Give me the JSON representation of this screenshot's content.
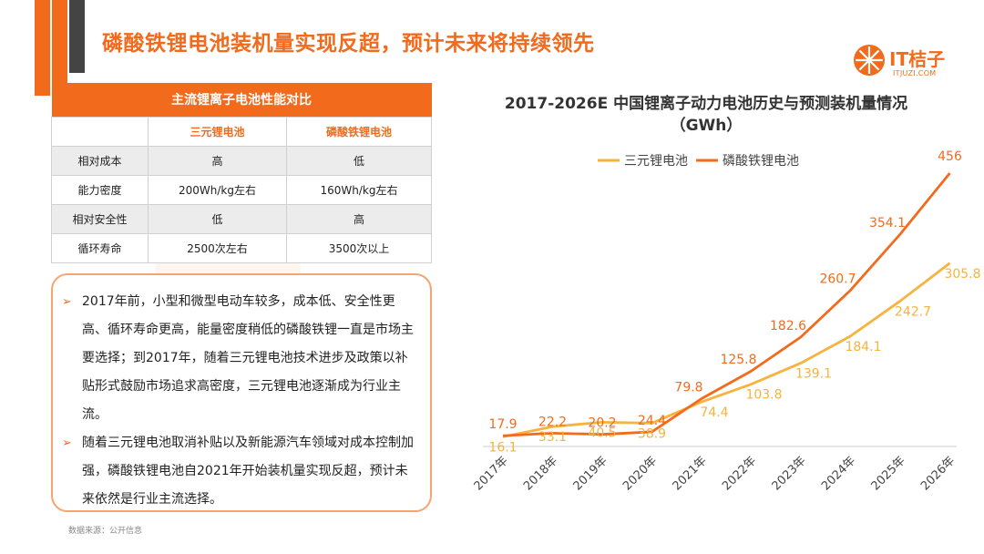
{
  "header": {
    "title": "磷酸铁锂电池装机量实现反超，预计未来将持续领先"
  },
  "logo": {
    "text": "IT桔子",
    "subtext": "ITJUZI.COM"
  },
  "table": {
    "title": "主流锂离子电池性能对比",
    "columns": [
      "",
      "三元锂电池",
      "磷酸铁锂电池"
    ],
    "rows": [
      [
        "相对成本",
        "高",
        "低"
      ],
      [
        "能力密度",
        "200Wh/kg左右",
        "160Wh/kg左右"
      ],
      [
        "相对安全性",
        "低",
        "高"
      ],
      [
        "循环寿命",
        "2500次左右",
        "3500次以上"
      ]
    ]
  },
  "notes": [
    "2017年前，小型和微型电动车较多，成本低、安全性更高、循环寿命更高，能量密度稍低的磷酸铁锂一直是市场主要选择；到2017年，随着三元锂电池技术进步及政策以补贴形式鼓励市场追求高密度，三元锂电池逐渐成为行业主流。",
    "随着三元锂电池取消补贴以及新能源汽车领域对成本控制加强，磷酸铁锂电池自2021年开始装机量实现反超，预计未来依然是行业主流选择。"
  ],
  "source": "数据来源：公开信息",
  "colors": {
    "brand": "#f26b1d",
    "ternary": "#f7b33d",
    "lfp": "#f26b1d"
  },
  "chart_data": {
    "type": "line",
    "title": "2017-2026E 中国锂离子动力电池历史与预测装机量情况（GWh）",
    "categories": [
      "2017年",
      "2018年",
      "2019年",
      "2020年",
      "2021年",
      "2022年",
      "2023年",
      "2024年",
      "2025年",
      "2026年"
    ],
    "series": [
      {
        "name": "三元锂电池",
        "color": "#f7b33d",
        "values": [
          16.1,
          33.1,
          40.5,
          38.9,
          74.4,
          103.8,
          139.1,
          184.1,
          242.7,
          305.8
        ]
      },
      {
        "name": "磷酸铁锂电池",
        "color": "#f26b1d",
        "values": [
          17.9,
          22.2,
          20.2,
          24.4,
          79.8,
          125.8,
          182.6,
          260.7,
          354.1,
          456
        ]
      }
    ],
    "legend_position": "top",
    "grid": false
  }
}
